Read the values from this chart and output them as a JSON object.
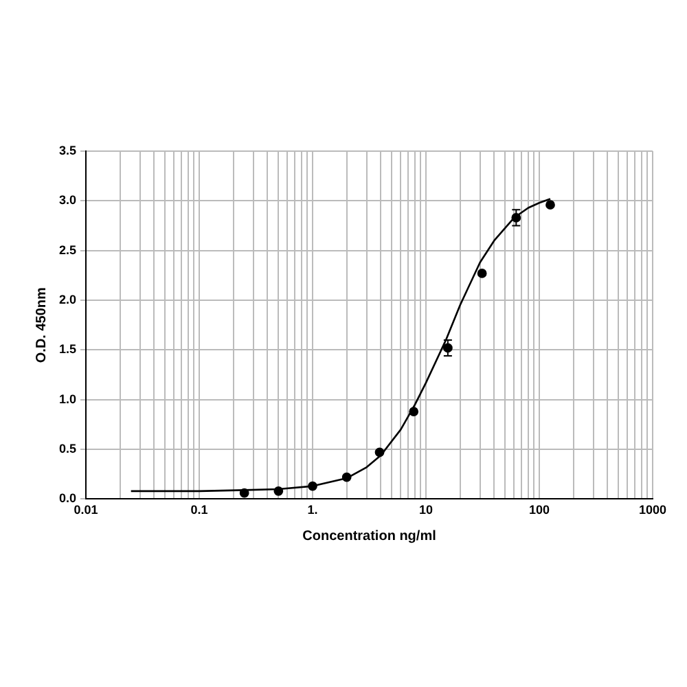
{
  "chart_data": {
    "type": "scatter",
    "xlabel": "Concentration ng/ml",
    "ylabel": "O.D. 450nm",
    "log": "x",
    "grid": true,
    "legend": false,
    "marker": "circle",
    "xlim": [
      0.01,
      1000
    ],
    "xticks": [
      {
        "value": 0.01,
        "label": "0.01"
      },
      {
        "value": 0.02,
        "label": null
      },
      {
        "value": 0.03,
        "label": null
      },
      {
        "value": 0.04,
        "label": null
      },
      {
        "value": 0.05,
        "label": null
      },
      {
        "value": 0.06,
        "label": null
      },
      {
        "value": 0.07,
        "label": null
      },
      {
        "value": 0.08,
        "label": null
      },
      {
        "value": 0.09,
        "label": null
      },
      {
        "value": 0.1,
        "label": "0.1"
      },
      {
        "value": 0.2,
        "label": null
      },
      {
        "value": 0.3,
        "label": null
      },
      {
        "value": 0.4,
        "label": null
      },
      {
        "value": 0.5,
        "label": null
      },
      {
        "value": 0.6,
        "label": null
      },
      {
        "value": 0.7,
        "label": null
      },
      {
        "value": 0.8,
        "label": null
      },
      {
        "value": 0.9,
        "label": null
      },
      {
        "value": 1,
        "label": "1."
      },
      {
        "value": 2,
        "label": null
      },
      {
        "value": 3,
        "label": null
      },
      {
        "value": 4,
        "label": null
      },
      {
        "value": 5,
        "label": null
      },
      {
        "value": 6,
        "label": null
      },
      {
        "value": 7,
        "label": null
      },
      {
        "value": 8,
        "label": null
      },
      {
        "value": 9,
        "label": null
      },
      {
        "value": 10,
        "label": "10"
      },
      {
        "value": 20,
        "label": null
      },
      {
        "value": 30,
        "label": null
      },
      {
        "value": 40,
        "label": null
      },
      {
        "value": 50,
        "label": null
      },
      {
        "value": 60,
        "label": null
      },
      {
        "value": 70,
        "label": null
      },
      {
        "value": 80,
        "label": null
      },
      {
        "value": 90,
        "label": null
      },
      {
        "value": 100,
        "label": "100"
      },
      {
        "value": 200,
        "label": null
      },
      {
        "value": 300,
        "label": null
      },
      {
        "value": 400,
        "label": null
      },
      {
        "value": 500,
        "label": null
      },
      {
        "value": 600,
        "label": null
      },
      {
        "value": 700,
        "label": null
      },
      {
        "value": 800,
        "label": null
      },
      {
        "value": 900,
        "label": null
      },
      {
        "value": 1000,
        "label": "1000"
      }
    ],
    "ylim": [
      0,
      3.5
    ],
    "yticks": [
      {
        "value": 0,
        "label": "0.0"
      },
      {
        "value": 0.5,
        "label": "0.5"
      },
      {
        "value": 1,
        "label": "1.0"
      },
      {
        "value": 1.5,
        "label": "1.5"
      },
      {
        "value": 2,
        "label": "2.0"
      },
      {
        "value": 2.5,
        "label": "2.5"
      },
      {
        "value": 3,
        "label": "3.0"
      },
      {
        "value": 3.5,
        "label": "3.5"
      }
    ],
    "series": [
      {
        "color": "#000000",
        "x": [
          0.25,
          0.5,
          1,
          2,
          3.9,
          7.8,
          15.6,
          31.25,
          62.5,
          125
        ],
        "values": [
          0.06,
          0.08,
          0.13,
          0.22,
          0.47,
          0.88,
          1.52,
          2.27,
          2.83,
          2.96
        ],
        "errors": [
          null,
          null,
          null,
          null,
          null,
          null,
          0.08,
          null,
          0.08,
          null
        ]
      },
      {
        "type": "line",
        "color": "#000000",
        "marker": "none",
        "x": [
          0.025,
          0.1,
          0.25,
          0.5,
          1,
          2,
          3,
          4,
          6,
          8,
          10,
          15,
          20,
          30,
          40,
          60,
          80,
          100,
          125
        ],
        "values": [
          0.08,
          0.08,
          0.09,
          0.1,
          0.13,
          0.21,
          0.32,
          0.44,
          0.7,
          0.95,
          1.17,
          1.6,
          1.95,
          2.38,
          2.6,
          2.83,
          2.93,
          2.98,
          3.02
        ]
      }
    ]
  }
}
